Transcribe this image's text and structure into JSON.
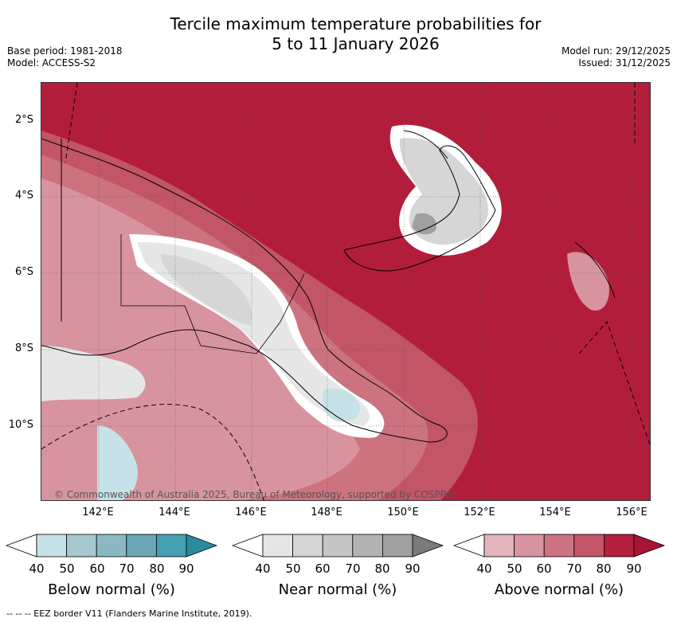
{
  "title_line1": "Tercile maximum temperature probabilities for",
  "title_line2": "5 to 11 January 2026",
  "base_period": "Base period: 1981-2018",
  "model": "Model: ACCESS-S2",
  "model_run": "Model run: 29/12/2025",
  "issued": "Issued: 31/12/2025",
  "lat_labels": [
    "2°S",
    "4°S",
    "6°S",
    "8°S",
    "10°S"
  ],
  "lon_labels": [
    "142°E",
    "144°E",
    "146°E",
    "148°E",
    "150°E",
    "152°E",
    "154°E",
    "156°E"
  ],
  "copyright": "© Commonwealth of Australia 2025, Bureau of Meteorology, supported by COSPPac",
  "colorbars": [
    {
      "title": "Below normal (%)",
      "ticks": [
        "40",
        "50",
        "60",
        "70",
        "80",
        "90"
      ],
      "colors": [
        "#ffffff",
        "#c7e1e8",
        "#a7c8cf",
        "#8bb8c2",
        "#6aa6b4",
        "#44a0b2",
        "#2a8b9e"
      ]
    },
    {
      "title": "Near normal (%)",
      "ticks": [
        "40",
        "50",
        "60",
        "70",
        "80",
        "90"
      ],
      "colors": [
        "#ffffff",
        "#e6e6e6",
        "#d6d6d6",
        "#c6c6c6",
        "#b3b3b3",
        "#a0a0a0",
        "#7a7a7a"
      ]
    },
    {
      "title": "Above normal (%)",
      "ticks": [
        "40",
        "50",
        "60",
        "70",
        "80",
        "90"
      ],
      "colors": [
        "#ffffff",
        "#e2b4bc",
        "#d8949e",
        "#cd727f",
        "#c25567",
        "#b51e3c",
        "#a81434"
      ]
    }
  ],
  "footnote": "-- -- -- EEZ border V11 (Flanders Marine Institute, 2019)."
}
